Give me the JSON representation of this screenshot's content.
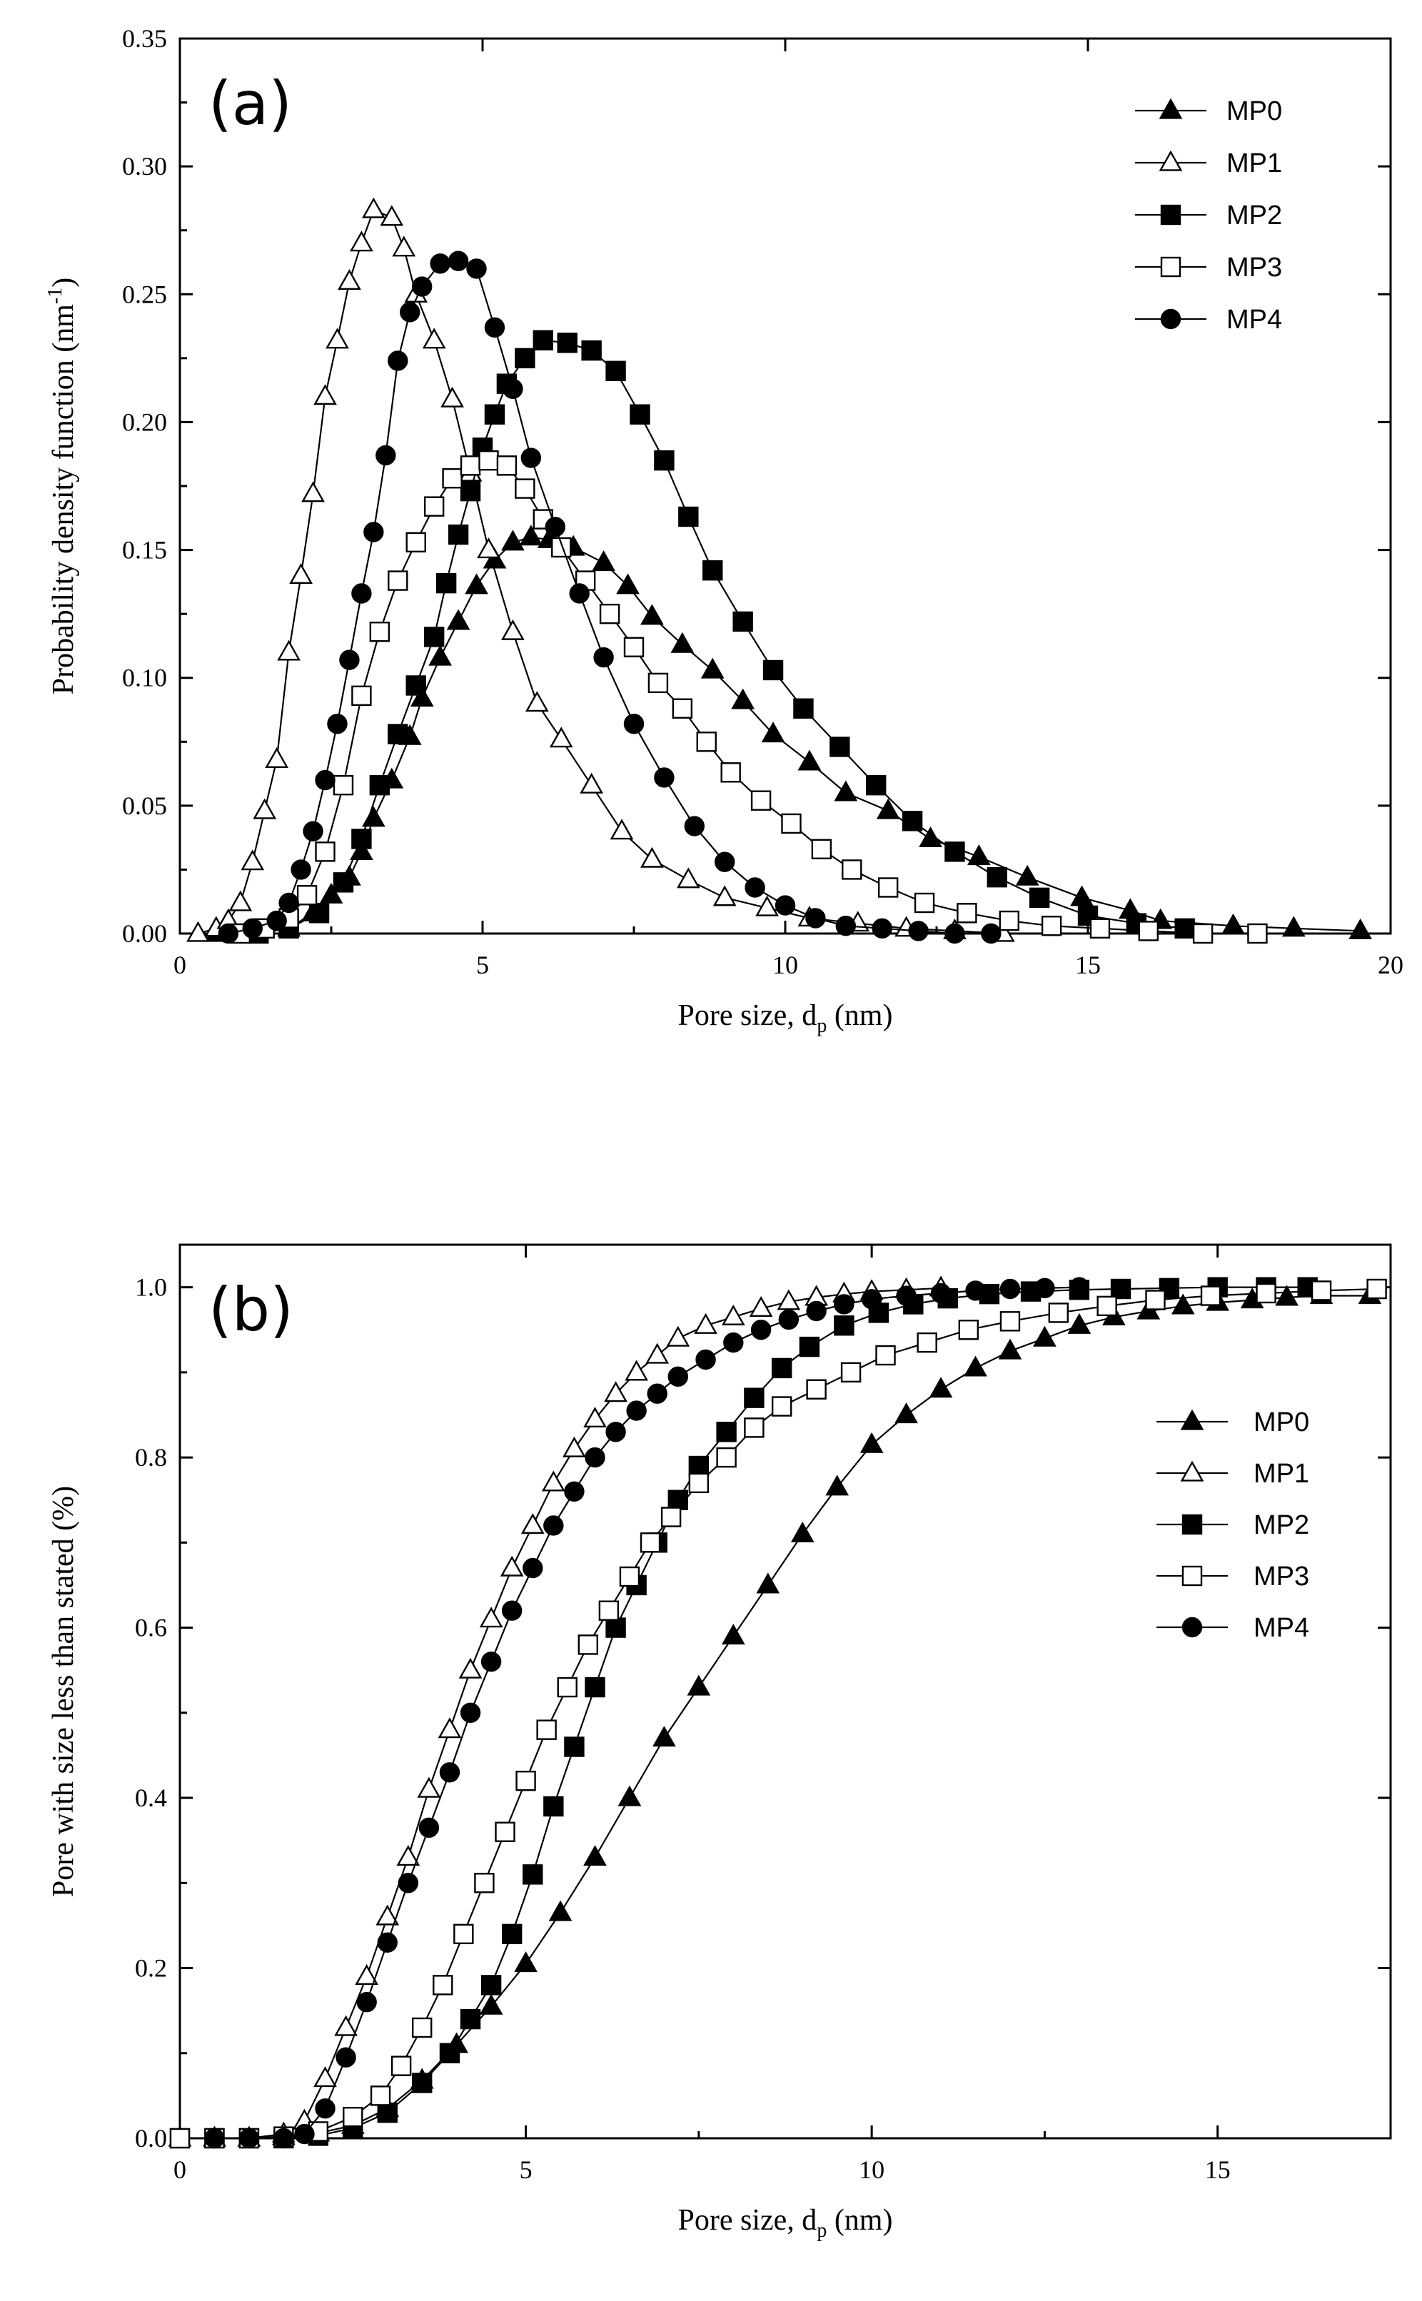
{
  "chart_data": [
    {
      "id": "a",
      "type": "line",
      "panel_label": "(a)",
      "xlabel": "Pore size, d",
      "xlabel_sub": "p",
      "xlabel_tail": " (nm)",
      "ylabel": "Probability density function (nm",
      "ylabel_sup": "-1",
      "ylabel_tail": ")",
      "xlim": [
        0,
        20
      ],
      "ylim": [
        0,
        0.35
      ],
      "xticks": [
        0,
        5,
        10,
        15,
        20
      ],
      "xtick_labels": [
        "0",
        "5",
        "10",
        "15",
        "20"
      ],
      "yticks": [
        0,
        0.05,
        0.1,
        0.15,
        0.2,
        0.25,
        0.3,
        0.35
      ],
      "ytick_labels": [
        "0.00",
        "0.05",
        "0.10",
        "0.15",
        "0.20",
        "0.25",
        "0.30",
        "0.35"
      ],
      "legend_position": "top-right",
      "series": [
        {
          "name": "MP0",
          "marker": "triangle",
          "fill": "#000000",
          "x": [
            0.6,
            1.2,
            1.8,
            2.2,
            2.5,
            2.8,
            3.0,
            3.2,
            3.5,
            3.8,
            4.0,
            4.3,
            4.6,
            4.9,
            5.2,
            5.5,
            5.8,
            6.1,
            6.5,
            7.0,
            7.4,
            7.8,
            8.3,
            8.8,
            9.3,
            9.8,
            10.4,
            11.0,
            11.7,
            12.4,
            13.2,
            14.0,
            14.9,
            15.7,
            16.2,
            17.4,
            18.4,
            19.5
          ],
          "y": [
            0.0,
            0.0,
            0.002,
            0.008,
            0.015,
            0.022,
            0.032,
            0.045,
            0.06,
            0.077,
            0.092,
            0.108,
            0.122,
            0.136,
            0.146,
            0.153,
            0.155,
            0.154,
            0.151,
            0.145,
            0.136,
            0.124,
            0.113,
            0.103,
            0.091,
            0.078,
            0.067,
            0.055,
            0.048,
            0.037,
            0.03,
            0.022,
            0.014,
            0.009,
            0.005,
            0.003,
            0.002,
            0.001
          ]
        },
        {
          "name": "MP1",
          "marker": "triangle",
          "fill": "#ffffff",
          "x": [
            0.3,
            0.6,
            0.8,
            1.0,
            1.2,
            1.4,
            1.6,
            1.8,
            2.0,
            2.2,
            2.4,
            2.6,
            2.8,
            3.0,
            3.2,
            3.5,
            3.7,
            3.9,
            4.2,
            4.5,
            4.8,
            5.1,
            5.5,
            5.9,
            6.3,
            6.8,
            7.3,
            7.8,
            8.4,
            9.0,
            9.7,
            10.4,
            11.2,
            12.0,
            12.8,
            13.6
          ],
          "y": [
            0.0,
            0.002,
            0.005,
            0.012,
            0.028,
            0.048,
            0.068,
            0.11,
            0.14,
            0.172,
            0.21,
            0.232,
            0.255,
            0.27,
            0.283,
            0.28,
            0.268,
            0.25,
            0.232,
            0.209,
            0.18,
            0.15,
            0.118,
            0.09,
            0.076,
            0.058,
            0.04,
            0.029,
            0.021,
            0.014,
            0.01,
            0.006,
            0.004,
            0.002,
            0.001,
            0.0
          ]
        },
        {
          "name": "MP2",
          "marker": "square",
          "fill": "#000000",
          "x": [
            1.3,
            1.8,
            2.3,
            2.7,
            3.0,
            3.3,
            3.6,
            3.9,
            4.2,
            4.4,
            4.6,
            4.8,
            5.0,
            5.2,
            5.4,
            5.7,
            6.0,
            6.4,
            6.8,
            7.2,
            7.6,
            8.0,
            8.4,
            8.8,
            9.3,
            9.8,
            10.3,
            10.9,
            11.5,
            12.1,
            12.8,
            13.5,
            14.2,
            15.0,
            15.8,
            16.6
          ],
          "y": [
            0.0,
            0.002,
            0.008,
            0.02,
            0.037,
            0.058,
            0.078,
            0.097,
            0.116,
            0.137,
            0.156,
            0.173,
            0.19,
            0.203,
            0.215,
            0.225,
            0.232,
            0.231,
            0.228,
            0.22,
            0.203,
            0.185,
            0.163,
            0.142,
            0.122,
            0.103,
            0.088,
            0.073,
            0.058,
            0.044,
            0.032,
            0.022,
            0.014,
            0.007,
            0.004,
            0.002
          ]
        },
        {
          "name": "MP3",
          "marker": "square",
          "fill": "#ffffff",
          "x": [
            1.0,
            1.4,
            1.8,
            2.1,
            2.4,
            2.7,
            3.0,
            3.3,
            3.6,
            3.9,
            4.2,
            4.5,
            4.8,
            5.1,
            5.4,
            5.7,
            6.0,
            6.3,
            6.7,
            7.1,
            7.5,
            7.9,
            8.3,
            8.7,
            9.1,
            9.6,
            10.1,
            10.6,
            11.1,
            11.7,
            12.3,
            13.0,
            13.7,
            14.4,
            15.2,
            16.0,
            16.9,
            17.8
          ],
          "y": [
            0.0,
            0.002,
            0.006,
            0.015,
            0.032,
            0.058,
            0.093,
            0.118,
            0.138,
            0.153,
            0.167,
            0.178,
            0.183,
            0.185,
            0.183,
            0.174,
            0.162,
            0.151,
            0.138,
            0.125,
            0.112,
            0.098,
            0.088,
            0.075,
            0.063,
            0.052,
            0.043,
            0.033,
            0.025,
            0.018,
            0.012,
            0.008,
            0.005,
            0.003,
            0.002,
            0.001,
            0.0,
            0.0
          ]
        },
        {
          "name": "MP4",
          "marker": "circle",
          "fill": "#000000",
          "x": [
            0.8,
            1.2,
            1.6,
            1.8,
            2.0,
            2.2,
            2.4,
            2.6,
            2.8,
            3.0,
            3.2,
            3.4,
            3.6,
            3.8,
            4.0,
            4.3,
            4.6,
            4.9,
            5.2,
            5.5,
            5.8,
            6.2,
            6.6,
            7.0,
            7.5,
            8.0,
            8.5,
            9.0,
            9.5,
            10.0,
            10.5,
            11.0,
            11.6,
            12.2,
            12.8,
            13.4
          ],
          "y": [
            0.0,
            0.002,
            0.005,
            0.012,
            0.025,
            0.04,
            0.06,
            0.082,
            0.107,
            0.133,
            0.157,
            0.187,
            0.224,
            0.243,
            0.253,
            0.262,
            0.263,
            0.26,
            0.237,
            0.213,
            0.186,
            0.159,
            0.133,
            0.108,
            0.082,
            0.061,
            0.042,
            0.028,
            0.018,
            0.011,
            0.006,
            0.003,
            0.002,
            0.001,
            0.0,
            0.0
          ]
        }
      ]
    },
    {
      "id": "b",
      "type": "line",
      "panel_label": "(b)",
      "xlabel": "Pore size, d",
      "xlabel_sub": "p",
      "xlabel_tail": " (nm)",
      "ylabel": "Pore with size less than stated (%)",
      "xlim": [
        0,
        17.5
      ],
      "ylim": [
        0,
        1.05
      ],
      "xticks": [
        0,
        5,
        10,
        15
      ],
      "xtick_labels": [
        "0",
        "5",
        "10",
        "15"
      ],
      "yticks": [
        0,
        0.2,
        0.4,
        0.6,
        0.8,
        1.0
      ],
      "ytick_labels": [
        "0.0",
        "0.2",
        "0.4",
        "0.6",
        "0.8",
        "1.0"
      ],
      "legend_position": "center-right",
      "series": [
        {
          "name": "MP0",
          "marker": "triangle",
          "fill": "#000000",
          "x": [
            0.0,
            0.5,
            1.0,
            1.5,
            2.0,
            2.5,
            3.0,
            3.5,
            4.0,
            4.5,
            5.0,
            5.5,
            6.0,
            6.5,
            7.0,
            7.5,
            8.0,
            8.5,
            9.0,
            9.5,
            10.0,
            10.5,
            11.0,
            11.5,
            12.0,
            12.5,
            13.0,
            13.5,
            14.0,
            14.5,
            15.0,
            15.5,
            16.0,
            16.5,
            17.2
          ],
          "y": [
            0.0,
            0.0,
            0.0,
            0.002,
            0.006,
            0.015,
            0.035,
            0.068,
            0.11,
            0.155,
            0.205,
            0.265,
            0.33,
            0.4,
            0.47,
            0.53,
            0.59,
            0.65,
            0.71,
            0.765,
            0.815,
            0.85,
            0.88,
            0.905,
            0.925,
            0.94,
            0.955,
            0.965,
            0.972,
            0.978,
            0.982,
            0.985,
            0.988,
            0.99,
            0.99
          ]
        },
        {
          "name": "MP1",
          "marker": "triangle",
          "fill": "#ffffff",
          "x": [
            0.5,
            1.0,
            1.5,
            1.8,
            2.1,
            2.4,
            2.7,
            3.0,
            3.3,
            3.6,
            3.9,
            4.2,
            4.5,
            4.8,
            5.1,
            5.4,
            5.7,
            6.0,
            6.3,
            6.6,
            6.9,
            7.2,
            7.6,
            8.0,
            8.4,
            8.8,
            9.2,
            9.6,
            10.0,
            10.5,
            11.0
          ],
          "y": [
            0.0,
            0.0,
            0.005,
            0.02,
            0.07,
            0.13,
            0.19,
            0.26,
            0.33,
            0.41,
            0.48,
            0.55,
            0.61,
            0.67,
            0.72,
            0.77,
            0.81,
            0.845,
            0.875,
            0.9,
            0.92,
            0.94,
            0.955,
            0.965,
            0.975,
            0.983,
            0.988,
            0.992,
            0.995,
            0.997,
            0.999
          ]
        },
        {
          "name": "MP2",
          "marker": "square",
          "fill": "#000000",
          "x": [
            0.0,
            0.5,
            1.0,
            1.5,
            2.0,
            2.5,
            3.0,
            3.5,
            3.9,
            4.2,
            4.5,
            4.8,
            5.1,
            5.4,
            5.7,
            6.0,
            6.3,
            6.6,
            6.9,
            7.2,
            7.5,
            7.9,
            8.3,
            8.7,
            9.1,
            9.6,
            10.1,
            10.6,
            11.1,
            11.7,
            12.3,
            13.0,
            13.6,
            14.3,
            15.0,
            15.7,
            16.3
          ],
          "y": [
            0.0,
            0.0,
            0.0,
            0.0,
            0.003,
            0.012,
            0.03,
            0.065,
            0.1,
            0.14,
            0.18,
            0.24,
            0.31,
            0.39,
            0.46,
            0.53,
            0.6,
            0.65,
            0.7,
            0.75,
            0.79,
            0.83,
            0.87,
            0.905,
            0.93,
            0.955,
            0.97,
            0.98,
            0.987,
            0.992,
            0.995,
            0.997,
            0.998,
            0.999,
            1.0,
            1.0,
            1.0
          ]
        },
        {
          "name": "MP3",
          "marker": "square",
          "fill": "#ffffff",
          "x": [
            0.0,
            0.5,
            1.0,
            1.5,
            2.0,
            2.5,
            2.9,
            3.2,
            3.5,
            3.8,
            4.1,
            4.4,
            4.7,
            5.0,
            5.3,
            5.6,
            5.9,
            6.2,
            6.5,
            6.8,
            7.1,
            7.5,
            7.9,
            8.3,
            8.7,
            9.2,
            9.7,
            10.2,
            10.8,
            11.4,
            12.0,
            12.7,
            13.4,
            14.1,
            14.9,
            15.7,
            16.5,
            17.3
          ],
          "y": [
            0.0,
            0.0,
            0.0,
            0.002,
            0.008,
            0.025,
            0.05,
            0.085,
            0.13,
            0.18,
            0.24,
            0.3,
            0.36,
            0.42,
            0.48,
            0.53,
            0.58,
            0.62,
            0.66,
            0.7,
            0.73,
            0.77,
            0.8,
            0.835,
            0.86,
            0.88,
            0.9,
            0.92,
            0.935,
            0.95,
            0.96,
            0.97,
            0.978,
            0.985,
            0.99,
            0.993,
            0.996,
            0.998
          ]
        },
        {
          "name": "MP4",
          "marker": "circle",
          "fill": "#000000",
          "x": [
            0.5,
            1.0,
            1.5,
            1.8,
            2.1,
            2.4,
            2.7,
            3.0,
            3.3,
            3.6,
            3.9,
            4.2,
            4.5,
            4.8,
            5.1,
            5.4,
            5.7,
            6.0,
            6.3,
            6.6,
            6.9,
            7.2,
            7.6,
            8.0,
            8.4,
            8.8,
            9.2,
            9.6,
            10.0,
            10.5,
            11.0,
            11.5,
            12.0,
            12.5,
            13.0
          ],
          "y": [
            0.0,
            0.0,
            0.0,
            0.005,
            0.035,
            0.095,
            0.16,
            0.23,
            0.3,
            0.365,
            0.43,
            0.5,
            0.56,
            0.62,
            0.67,
            0.72,
            0.76,
            0.8,
            0.83,
            0.855,
            0.875,
            0.895,
            0.915,
            0.935,
            0.95,
            0.962,
            0.972,
            0.98,
            0.986,
            0.99,
            0.993,
            0.996,
            0.998,
            0.999,
            1.0
          ]
        }
      ]
    }
  ]
}
